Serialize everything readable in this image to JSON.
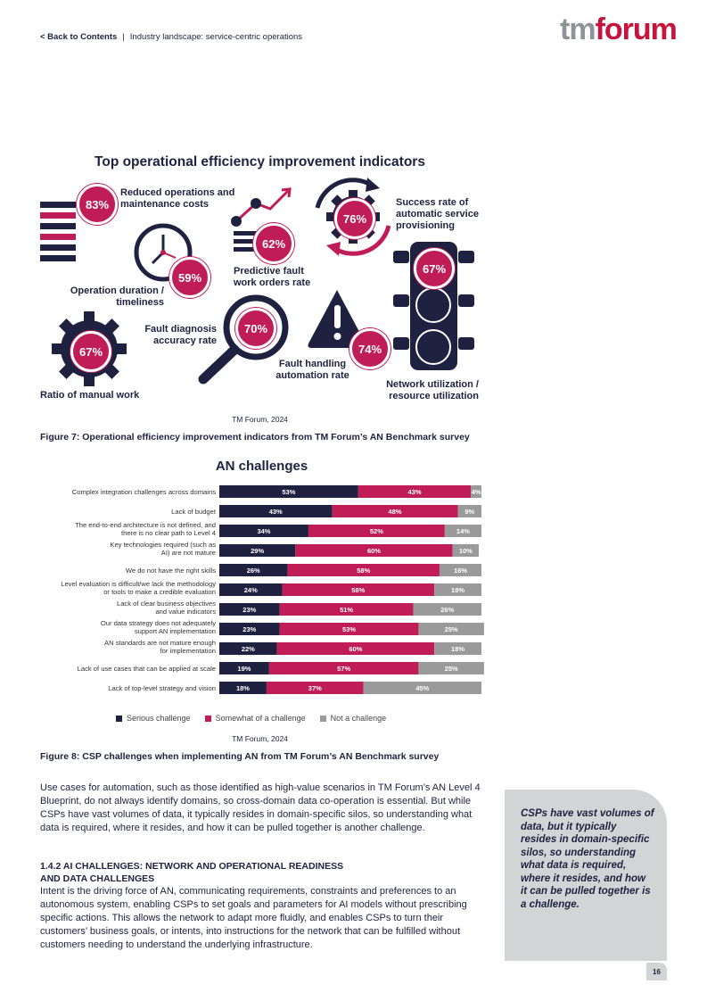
{
  "header": {
    "back_link": "< Back to Contents",
    "separator": "|",
    "section": "Industry landscape: service-centric operations"
  },
  "logo": {
    "tm": "tm",
    "forum": "forum"
  },
  "infographic": {
    "title": "Top operational efficiency improvement indicators",
    "items": [
      {
        "pct": "83%",
        "label": "Reduced operations and maintenance costs"
      },
      {
        "pct": "59%",
        "label": "Operation duration / timeliness"
      },
      {
        "pct": "67%",
        "label": "Ratio of manual work"
      },
      {
        "pct": "62%",
        "label": "Predictive fault work orders rate"
      },
      {
        "pct": "70%",
        "label": "Fault diagnosis accuracy rate"
      },
      {
        "pct": "76%",
        "label": "Success rate of automatic service provisioning"
      },
      {
        "pct": "74%",
        "label": "Fault handling automation rate"
      },
      {
        "pct": "67%",
        "label": "Network utilization / resource utilization"
      }
    ],
    "source": "TM Forum, 2024",
    "caption": "Figure 7: Operational efficiency improvement indicators from TM Forum’s AN Benchmark survey"
  },
  "chart_data": {
    "type": "bar",
    "orientation": "horizontal",
    "stacked": true,
    "title": "AN challenges",
    "categories": [
      "Complex integration challenges across domains",
      "Lack of budget",
      "The end-to-end architecture is not defined, and there is no clear path to Level 4",
      "Key technologies required (such as AI) are not mature",
      "We do not have the right skills",
      "Level evaluation is difficult/we lack the methodology or tools to make a credible evaluation",
      "Lack of clear business objectives and value indicators",
      "Our data strategy does not adequately support AN implementation",
      "AN standards are not mature enough for implementation",
      "Lack of use cases that can be applied at scale",
      "Lack of top-level strategy and vision"
    ],
    "series": [
      {
        "name": "Serious challenge",
        "color": "#1e2240",
        "values": [
          53,
          43,
          34,
          29,
          26,
          24,
          23,
          23,
          22,
          19,
          18
        ]
      },
      {
        "name": "Somewhat of a challenge",
        "color": "#c01c56",
        "values": [
          43,
          48,
          52,
          60,
          58,
          58,
          51,
          53,
          60,
          57,
          37
        ]
      },
      {
        "name": "Not a challenge",
        "color": "#9a9a9a",
        "values": [
          4,
          9,
          14,
          10,
          16,
          18,
          26,
          25,
          18,
          25,
          45
        ]
      }
    ],
    "value_suffix": "%",
    "source": "TM Forum, 2024",
    "caption": "Figure 8: CSP challenges when implementing AN from TM Forum’s AN Benchmark survey"
  },
  "text": {
    "para1": "Use cases for automation, such as those identified as high-value scenarios in TM Forum’s AN Level 4 Blueprint, do not always identify domains, so cross-domain data co-operation is essential. But while CSPs have vast volumes of data, it typically resides in domain-specific silos, so understanding what data is required, where it resides, and how it can be pulled together is another challenge.",
    "heading_line1": "1.4.2 AI CHALLENGES: NETWORK AND OPERATIONAL READINESS",
    "heading_line2": "AND DATA CHALLENGES",
    "para2": "Intent is the driving force of AN, communicating requirements, constraints and preferences to an autonomous system, enabling CSPs to set goals and parameters for AI models without prescribing specific actions. This allows the network to adapt more fluidly, and enables CSPs to turn their customers’ business goals, or intents, into instructions for the network that can be fulfilled without customers needing to understand the underlying infrastructure.",
    "quote": "CSPs have vast volumes of data, but it typically resides in domain-specific silos, so understanding what data is required, where it resides, and how it can be pulled together is a challenge."
  },
  "page_number": "16"
}
